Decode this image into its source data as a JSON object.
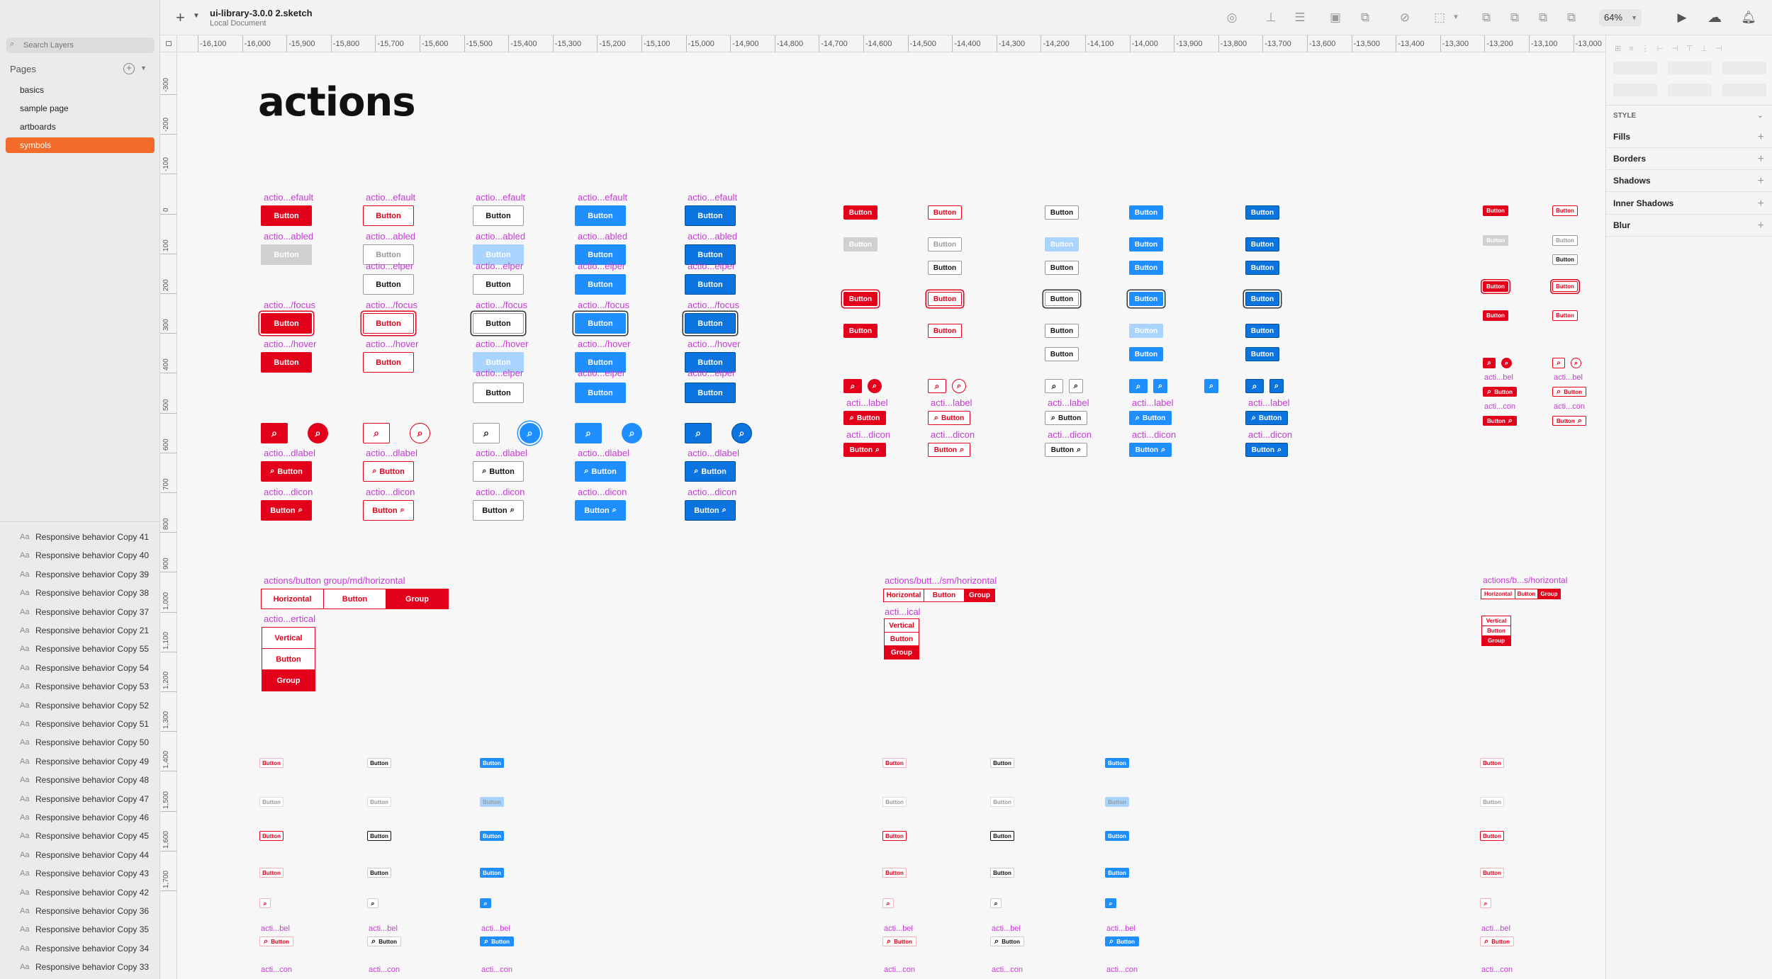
{
  "window": {
    "doc_title": "ui-library-3.0.0 2.sketch",
    "doc_subtitle": "Local Document",
    "zoom": "64%"
  },
  "sidebar": {
    "search_placeholder": "Search Layers",
    "pages_title": "Pages",
    "pages": [
      "basics",
      "sample page",
      "artboards",
      "symbols"
    ],
    "selected_page": "symbols",
    "layers": [
      "Responsive behavior Copy 41",
      "Responsive behavior Copy 40",
      "Responsive behavior Copy 39",
      "Responsive behavior Copy 38",
      "Responsive behavior Copy 37",
      "Responsive behavior Copy 21",
      "Responsive behavior Copy 55",
      "Responsive behavior Copy 54",
      "Responsive behavior Copy 53",
      "Responsive behavior Copy 52",
      "Responsive behavior Copy 51",
      "Responsive behavior Copy 50",
      "Responsive behavior Copy 49",
      "Responsive behavior Copy 48",
      "Responsive behavior Copy 47",
      "Responsive behavior Copy 46",
      "Responsive behavior Copy 45",
      "Responsive behavior Copy 44",
      "Responsive behavior Copy 43",
      "Responsive behavior Copy 42",
      "Responsive behavior Copy 36",
      "Responsive behavior Copy 35",
      "Responsive behavior Copy 34",
      "Responsive behavior Copy 33"
    ],
    "layer_icon": "Aa"
  },
  "rulers": {
    "x_ticks": [
      "-16,100",
      "-16,000",
      "-15,900",
      "-15,800",
      "-15,700",
      "-15,600",
      "-15,500",
      "-15,400",
      "-15,300",
      "-15,200",
      "-15,100",
      "-15,000",
      "-14,900",
      "-14,800",
      "-14,700",
      "-14,600",
      "-14,500",
      "-14,400",
      "-14,300",
      "-14,200",
      "-14,100",
      "-14,000",
      "-13,900",
      "-13,800",
      "-13,700",
      "-13,600",
      "-13,500",
      "-13,400",
      "-13,300",
      "-13,200",
      "-13,100",
      "-13,000"
    ],
    "y_ticks": [
      "-300",
      "-200",
      "-100",
      "0",
      "100",
      "200",
      "300",
      "400",
      "500",
      "600",
      "700",
      "800",
      "900",
      "1,000",
      "1,100",
      "1,200",
      "1,300",
      "1,400",
      "1,500",
      "1,600",
      "1,700"
    ]
  },
  "inspector": {
    "style_label": "STYLE",
    "sections": [
      "Fills",
      "Borders",
      "Shadows",
      "Inner Shadows",
      "Blur"
    ]
  },
  "canvas": {
    "page_heading": "actions",
    "button_text": "Button",
    "labels": {
      "default": "actio...efault",
      "disabled": "actio...abled",
      "helper": "actio...elper",
      "focus": "actio.../focus",
      "hover": "actio.../hover",
      "dlabel": "actio...dlabel",
      "dicon": "actio...dicon",
      "sm_label": "acti...label",
      "sm_dicon": "acti...dicon",
      "xs_bel": "acti...bel",
      "xs_con": "acti...con",
      "group_md": "actions/button group/md/horizontal",
      "group_md_v": "actio...ertical",
      "group_sm": "actions/butt.../sm/horizontal",
      "group_sm_v": "acti...ical",
      "group_xs": "actions/b...s/horizontal"
    },
    "group_h": [
      "Horizontal",
      "Button",
      "Group"
    ],
    "group_v": [
      "Vertical",
      "Button",
      "Group"
    ]
  }
}
